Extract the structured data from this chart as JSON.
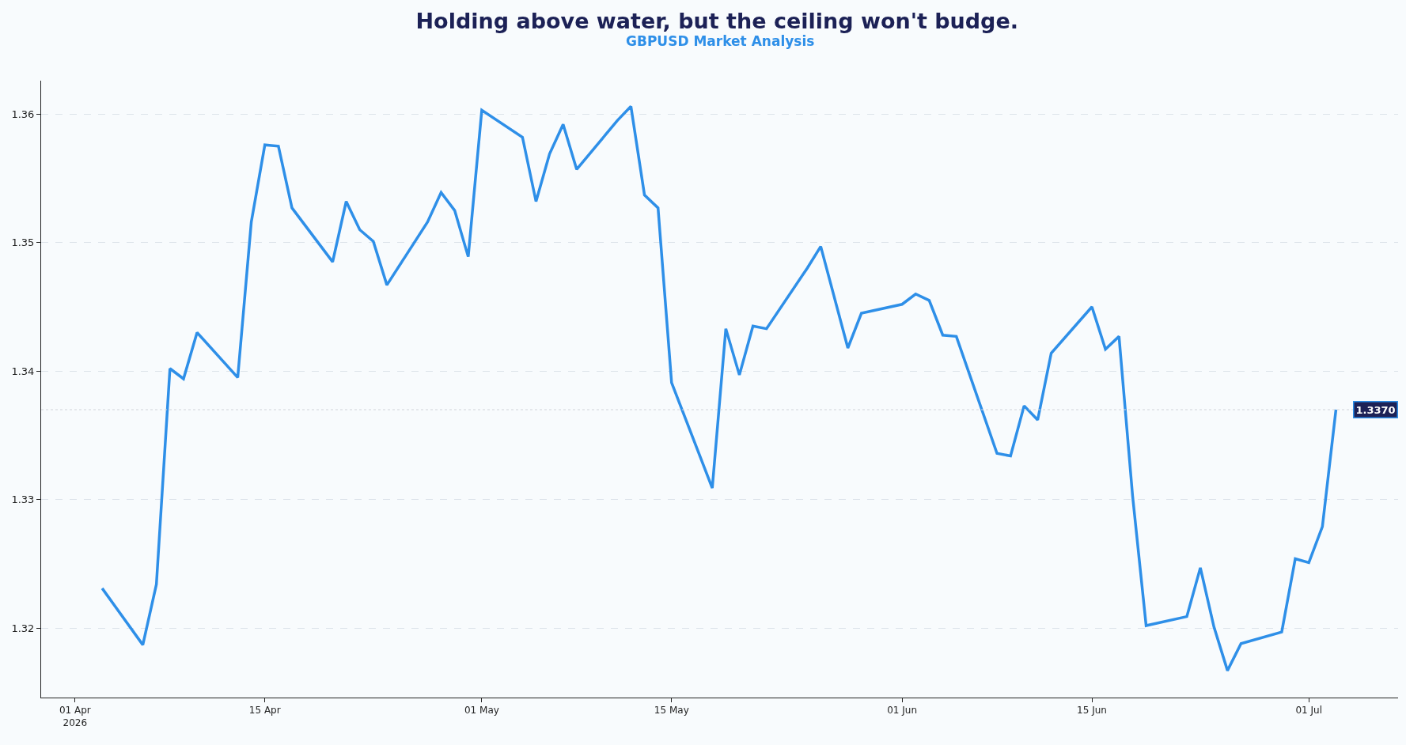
{
  "chart_data": {
    "type": "line",
    "title": "Holding above water, but the ceiling won't budge.",
    "subtitle": "GBPUSD Market Analysis",
    "x": [
      "2026-04-03",
      "2026-04-06",
      "2026-04-07",
      "2026-04-08",
      "2026-04-09",
      "2026-04-10",
      "2026-04-13",
      "2026-04-14",
      "2026-04-15",
      "2026-04-16",
      "2026-04-17",
      "2026-04-20",
      "2026-04-21",
      "2026-04-22",
      "2026-04-23",
      "2026-04-24",
      "2026-04-27",
      "2026-04-28",
      "2026-04-29",
      "2026-04-30",
      "2026-05-01",
      "2026-05-04",
      "2026-05-05",
      "2026-05-06",
      "2026-05-07",
      "2026-05-08",
      "2026-05-11",
      "2026-05-12",
      "2026-05-13",
      "2026-05-14",
      "2026-05-15",
      "2026-05-18",
      "2026-05-19",
      "2026-05-20",
      "2026-05-21",
      "2026-05-22",
      "2026-05-25",
      "2026-05-26",
      "2026-05-28",
      "2026-05-29",
      "2026-06-01",
      "2026-06-02",
      "2026-06-03",
      "2026-06-04",
      "2026-06-05",
      "2026-06-08",
      "2026-06-09",
      "2026-06-10",
      "2026-06-11",
      "2026-06-12",
      "2026-06-15",
      "2026-06-16",
      "2026-06-17",
      "2026-06-18",
      "2026-06-19",
      "2026-06-22",
      "2026-06-23",
      "2026-06-24",
      "2026-06-25",
      "2026-06-26",
      "2026-06-29",
      "2026-06-30",
      "2026-07-01",
      "2026-07-02",
      "2026-07-03"
    ],
    "series": [
      {
        "color": "#2e8fe8",
        "values": [
          1.3231,
          1.3187,
          1.3234,
          1.3402,
          1.3394,
          1.343,
          1.3395,
          1.3516,
          1.3576,
          1.3575,
          1.3527,
          1.3485,
          1.3532,
          1.351,
          1.3501,
          1.3467,
          1.3516,
          1.3539,
          1.3525,
          1.3489,
          1.3603,
          1.3582,
          1.3532,
          1.3569,
          1.3592,
          1.3557,
          1.3595,
          1.3606,
          1.3537,
          1.3527,
          1.3391,
          1.3309,
          1.3433,
          1.3397,
          1.3435,
          1.3433,
          1.348,
          1.3497,
          1.3418,
          1.3445,
          1.3452,
          1.346,
          1.3455,
          1.3428,
          1.3427,
          1.3336,
          1.3334,
          1.3373,
          1.3362,
          1.3414,
          1.345,
          1.3417,
          1.3427,
          1.3303,
          1.3202,
          1.3209,
          1.3247,
          1.3201,
          1.3167,
          1.3188,
          1.3197,
          1.3254,
          1.3251,
          1.3279,
          1.337
        ]
      }
    ],
    "xlim": [
      "2026-03-29T12:00",
      "2026-07-07T14:00"
    ],
    "xticks": [
      {
        "value": "2026-04-01",
        "label": "01 Apr\n2026"
      },
      {
        "value": "2026-04-15",
        "label": "15 Apr"
      },
      {
        "value": "2026-05-01",
        "label": "01 May"
      },
      {
        "value": "2026-05-15",
        "label": "15 May"
      },
      {
        "value": "2026-06-01",
        "label": "01 Jun"
      },
      {
        "value": "2026-06-15",
        "label": "15 Jun"
      },
      {
        "value": "2026-07-01",
        "label": "01 Jul"
      }
    ],
    "ylim": [
      1.3146,
      1.3626
    ],
    "yticks": [
      1.32,
      1.33,
      1.34,
      1.35,
      1.36
    ],
    "grid": "y",
    "line_style": "solid",
    "marker": "none",
    "ref_lines": [
      {
        "axis": "y",
        "value": 1.337,
        "label": "1.3370",
        "color": "#cfd4da",
        "line_style": "dotted"
      }
    ]
  }
}
